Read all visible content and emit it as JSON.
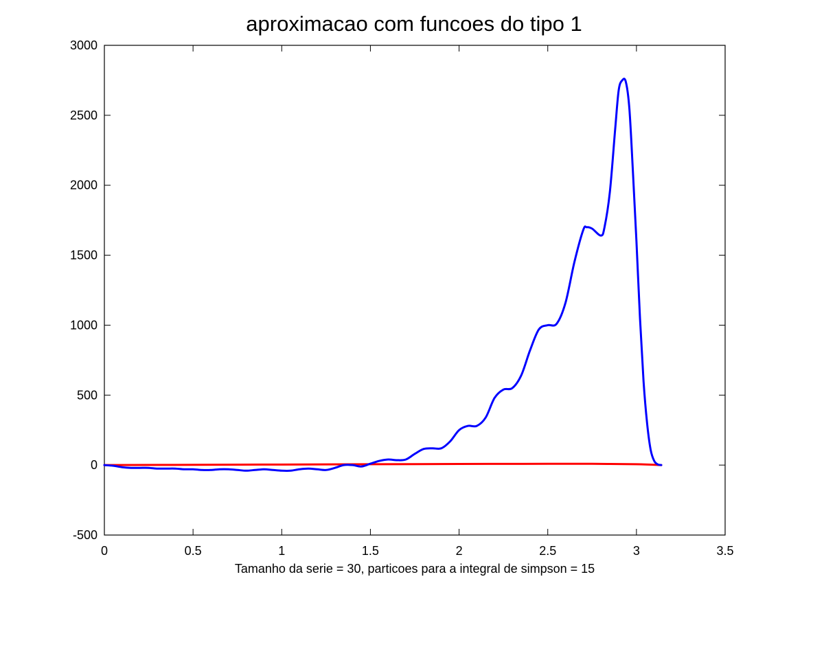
{
  "chart_data": {
    "type": "line",
    "title": "aproximacao com funcoes do tipo 1",
    "xlabel": "Tamanho da serie = 30, particoes para a integral de simpson = 15",
    "ylabel": "",
    "xlim": [
      0,
      3.5
    ],
    "ylim": [
      -500,
      3000
    ],
    "xticks": [
      0,
      0.5,
      1,
      1.5,
      2,
      2.5,
      3,
      3.5
    ],
    "xtick_labels": [
      "0",
      "0.5",
      "1",
      "1.5",
      "2",
      "2.5",
      "3",
      "3.5"
    ],
    "yticks": [
      -500,
      0,
      500,
      1000,
      1500,
      2000,
      2500,
      3000
    ],
    "ytick_labels": [
      "-500",
      "0",
      "500",
      "1000",
      "1500",
      "2000",
      "2500",
      "3000"
    ],
    "grid": false,
    "series": [
      {
        "color": "#0000ff",
        "x": [
          0,
          0.05,
          0.1,
          0.15,
          0.2,
          0.25,
          0.3,
          0.35,
          0.4,
          0.45,
          0.5,
          0.55,
          0.6,
          0.65,
          0.7,
          0.75,
          0.8,
          0.85,
          0.9,
          0.95,
          1.0,
          1.05,
          1.1,
          1.15,
          1.2,
          1.25,
          1.3,
          1.35,
          1.4,
          1.45,
          1.5,
          1.55,
          1.6,
          1.65,
          1.7,
          1.75,
          1.8,
          1.85,
          1.9,
          1.95,
          2.0,
          2.05,
          2.1,
          2.15,
          2.2,
          2.25,
          2.3,
          2.35,
          2.4,
          2.45,
          2.5,
          2.55,
          2.6,
          2.65,
          2.7,
          2.72,
          2.75,
          2.8,
          2.82,
          2.85,
          2.88,
          2.9,
          2.92,
          2.94,
          2.96,
          2.98,
          3.0,
          3.02,
          3.04,
          3.06,
          3.08,
          3.1,
          3.12,
          3.14
        ],
        "y": [
          0,
          -5,
          -15,
          -20,
          -20,
          -20,
          -25,
          -25,
          -25,
          -30,
          -30,
          -35,
          -35,
          -30,
          -30,
          -35,
          -40,
          -35,
          -30,
          -35,
          -40,
          -40,
          -30,
          -25,
          -30,
          -35,
          -20,
          0,
          0,
          -10,
          10,
          30,
          40,
          35,
          40,
          80,
          115,
          120,
          120,
          170,
          250,
          280,
          280,
          340,
          480,
          540,
          550,
          640,
          820,
          970,
          1000,
          1010,
          1160,
          1450,
          1680,
          1700,
          1690,
          1640,
          1700,
          1950,
          2400,
          2680,
          2750,
          2740,
          2550,
          2100,
          1600,
          1050,
          600,
          300,
          110,
          30,
          5,
          0
        ]
      },
      {
        "color": "#ff0000",
        "x": [
          0,
          0.5,
          1.0,
          1.5,
          2.0,
          2.5,
          2.75,
          3.0,
          3.14
        ],
        "y": [
          0,
          2,
          4,
          6,
          8,
          9,
          9,
          6,
          0
        ]
      }
    ]
  }
}
